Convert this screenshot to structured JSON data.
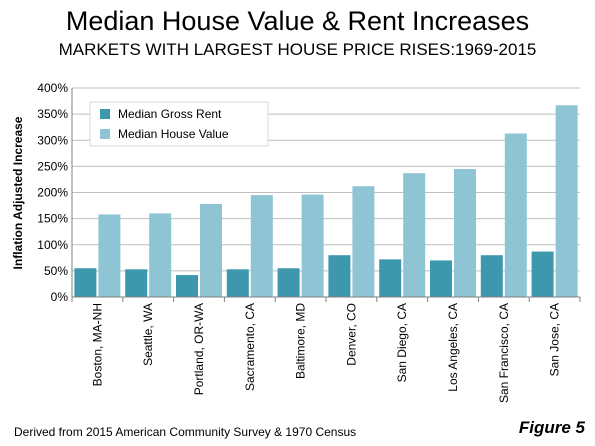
{
  "header": {
    "title": "Median House Value & Rent Increases",
    "subtitle": "MARKETS WITH LARGEST HOUSE PRICE RISES:1969-2015"
  },
  "footer": {
    "source": "Derived from 2015 American Community Survey & 1970 Census",
    "figure": "Figure 5"
  },
  "colors": {
    "rent": "#3d97ad",
    "house": "#8fc4d5",
    "grid": "#bfbfbf",
    "axis": "#808080"
  },
  "chart_data": {
    "type": "bar",
    "ylabel": "Inflation Adjusted Increase",
    "ylim": [
      0,
      400
    ],
    "yticks": [
      0,
      50,
      100,
      150,
      200,
      250,
      300,
      350,
      400
    ],
    "ytick_labels": [
      "0%",
      "50%",
      "100%",
      "150%",
      "200%",
      "250%",
      "300%",
      "350%",
      "400%"
    ],
    "grid": true,
    "legend_position": "top-left",
    "categories": [
      "Boston, MA-NH",
      "Seattle, WA",
      "Portland, OR-WA",
      "Sacramento, CA",
      "Baltimore, MD",
      "Denver, CO",
      "San Diego, CA",
      "Los Angeles, CA",
      "San Francisco, CA",
      "San Jose, CA"
    ],
    "series": [
      {
        "name": "Median Gross Rent",
        "values": [
          55,
          53,
          42,
          53,
          55,
          80,
          72,
          70,
          80,
          87
        ]
      },
      {
        "name": "Median House Value",
        "values": [
          158,
          160,
          178,
          195,
          196,
          212,
          237,
          245,
          313,
          367
        ]
      }
    ]
  }
}
